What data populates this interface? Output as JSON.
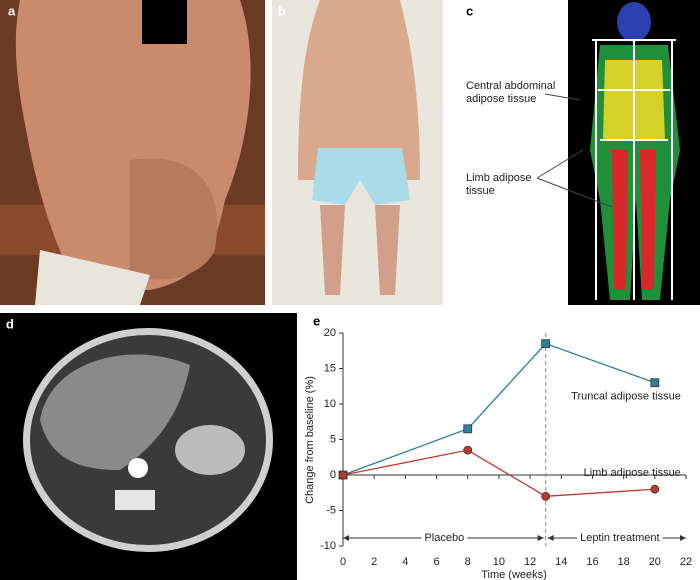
{
  "panels": [
    {
      "label": "a"
    },
    {
      "label": "b"
    },
    {
      "label": "c",
      "annotations": [
        [
          "Central abdominal",
          "adipose tissue"
        ],
        [
          "Limb adipose",
          "tissue"
        ]
      ]
    },
    {
      "label": "d"
    },
    {
      "label": "e"
    }
  ],
  "chart_data": {
    "type": "line",
    "xlabel": "Time (weeks)",
    "ylabel": "Change from baseline (%)",
    "x": [
      0,
      8,
      13,
      20
    ],
    "series": [
      {
        "name": "Truncal adipose tissue",
        "color": "#2e7f99",
        "marker": "square",
        "values": [
          0,
          6.5,
          18.5,
          13
        ]
      },
      {
        "name": "Limb adipose tissue",
        "color": "#c0392b",
        "marker": "circle",
        "values": [
          0,
          3.5,
          -3,
          -2
        ]
      }
    ],
    "xlim": [
      0,
      22
    ],
    "ylim": [
      -10,
      20
    ],
    "xticks": [
      0,
      2,
      4,
      6,
      8,
      10,
      12,
      14,
      16,
      18,
      20,
      22
    ],
    "yticks": [
      -10,
      -5,
      0,
      5,
      10,
      15,
      20
    ],
    "phase_boundary": 13,
    "phases": [
      "Placebo",
      "Leptin treatment"
    ]
  }
}
